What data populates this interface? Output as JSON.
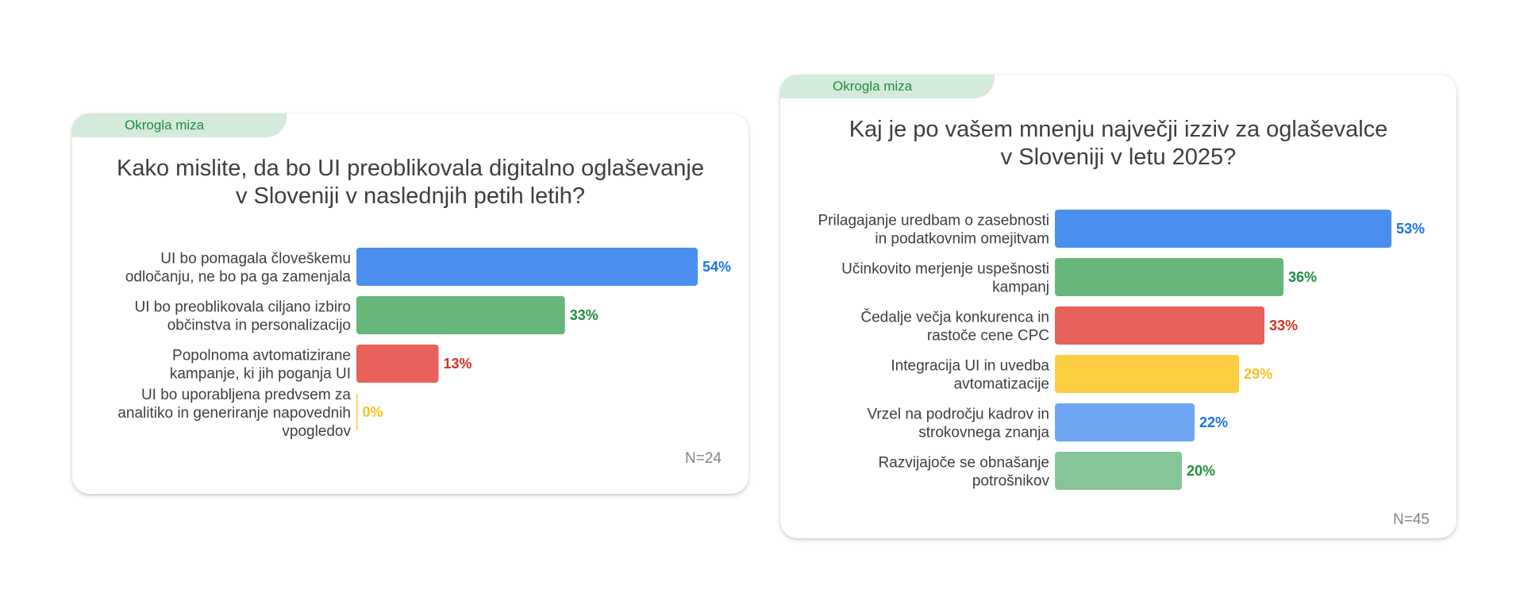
{
  "chart_data": [
    {
      "type": "bar",
      "orientation": "horizontal",
      "tag": "Okrogla miza",
      "title_lines": [
        "Kako mislite, da bo UI preoblikovala digitalno oglaševanje",
        "v Sloveniji v naslednjih petih letih?"
      ],
      "categories": [
        [
          "UI bo pomagala človeškemu",
          "odločanju, ne bo pa ga zamenjala"
        ],
        [
          "UI bo preoblikovala ciljano izbiro",
          "občinstva in personalizacijo"
        ],
        [
          "Popolnoma avtomatizirane",
          "kampanje, ki jih poganja UI"
        ],
        [
          "UI bo uporabljena predvsem za",
          "analitiko in generiranje napovednih",
          "vpogledov"
        ]
      ],
      "values": [
        54,
        33,
        13,
        0
      ],
      "value_labels": [
        "54%",
        "33%",
        "13%",
        "0%"
      ],
      "bar_colors": [
        "#4a8fee",
        "#67b77b",
        "#e8615a",
        "#fccb3f"
      ],
      "label_colors": [
        "#1a73e8",
        "#1e8e3e",
        "#d93025",
        "#f9bf1e"
      ],
      "xlim": [
        0,
        54
      ],
      "note": "N=24"
    },
    {
      "type": "bar",
      "orientation": "horizontal",
      "tag": "Okrogla miza",
      "title_lines": [
        "Kaj je po vašem mnenju največji izziv za oglaševalce",
        "v Sloveniji v letu 2025?"
      ],
      "categories": [
        [
          "Prilagajanje uredbam o zasebnosti",
          "in podatkovnim omejitvam"
        ],
        [
          "Učinkovito merjenje uspešnosti",
          "kampanj"
        ],
        [
          "Čedalje večja konkurenca in",
          "rastoče cene CPC"
        ],
        [
          "Integracija UI in uvedba",
          "avtomatizacije"
        ],
        [
          "Vrzel na področju kadrov in",
          "strokovnega znanja"
        ],
        [
          "Razvijajoče se obnašanje",
          "potrošnikov"
        ]
      ],
      "values": [
        53,
        36,
        33,
        29,
        22,
        20
      ],
      "value_labels": [
        "53%",
        "36%",
        "33%",
        "29%",
        "22%",
        "20%"
      ],
      "bar_colors": [
        "#4a8fee",
        "#67b77b",
        "#e8615a",
        "#fdce41",
        "#6ea6f2",
        "#86c597"
      ],
      "label_colors": [
        "#1a73e8",
        "#1e8e3e",
        "#d93025",
        "#f9bf1e",
        "#1a73e8",
        "#1e8e3e"
      ],
      "xlim": [
        0,
        53
      ],
      "note": "N=45"
    }
  ]
}
